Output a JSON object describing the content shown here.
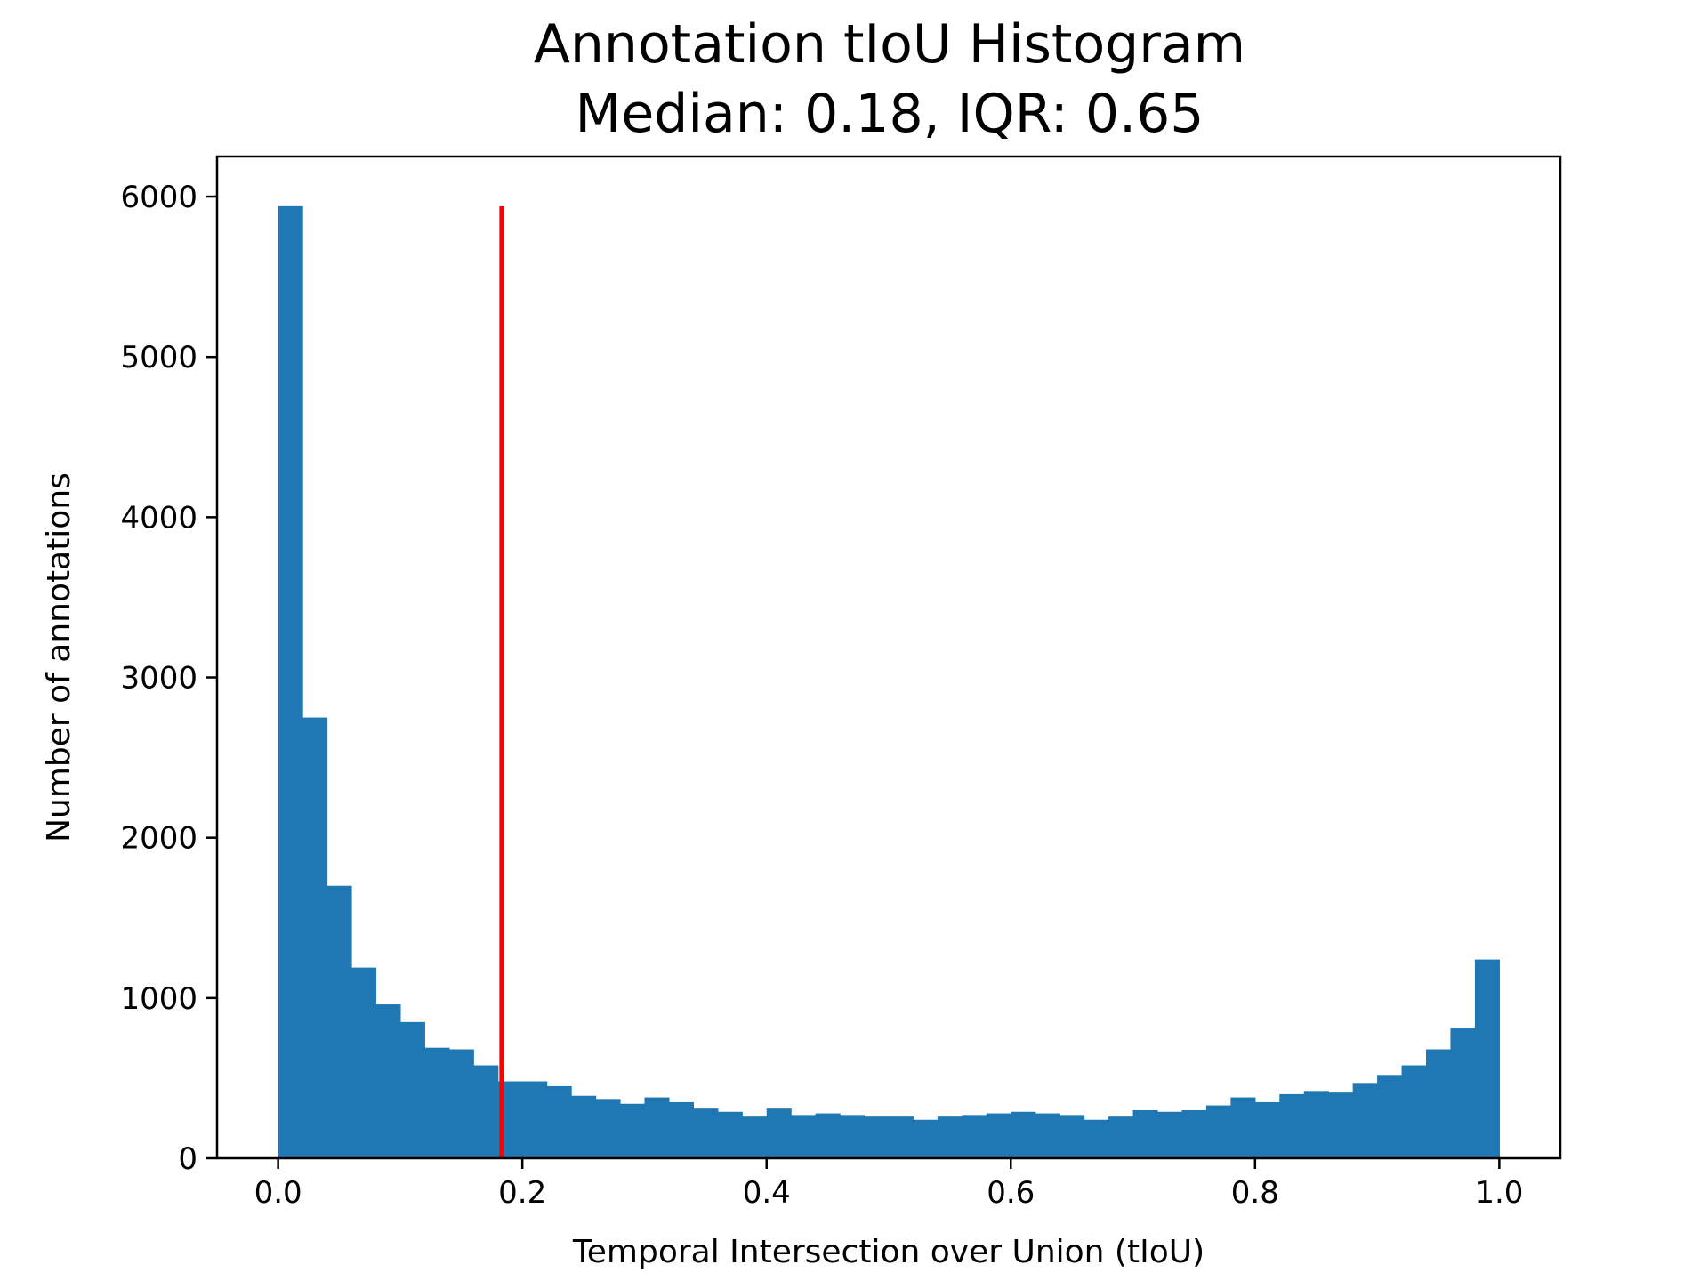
{
  "chart_data": {
    "type": "bar",
    "title_line1": "Annotation tIoU Histogram",
    "title_line2": "Median: 0.18, IQR: 0.65",
    "xlabel": "Temporal Intersection over Union (tIoU)",
    "ylabel": "Number of annotations",
    "xlim": [
      -0.05,
      1.05
    ],
    "ylim": [
      0,
      6250
    ],
    "xticks": [
      "0.0",
      "0.2",
      "0.4",
      "0.6",
      "0.8",
      "1.0"
    ],
    "xtick_values": [
      0.0,
      0.2,
      0.4,
      0.6,
      0.8,
      1.0
    ],
    "yticks": [
      "0",
      "1000",
      "2000",
      "3000",
      "4000",
      "5000",
      "6000"
    ],
    "ytick_values": [
      0,
      1000,
      2000,
      3000,
      4000,
      5000,
      6000
    ],
    "bin_start": 0.0,
    "bin_width": 0.02,
    "values": [
      5940,
      2750,
      1700,
      1190,
      960,
      850,
      690,
      680,
      580,
      480,
      480,
      450,
      390,
      370,
      340,
      380,
      350,
      310,
      290,
      260,
      310,
      270,
      280,
      270,
      260,
      260,
      240,
      260,
      270,
      280,
      290,
      280,
      270,
      240,
      260,
      300,
      290,
      300,
      330,
      380,
      350,
      400,
      420,
      410,
      470,
      520,
      580,
      680,
      810,
      1240
    ],
    "median_line": {
      "x": 0.183,
      "y_top": 5940
    },
    "colors": {
      "bars": "#1f77b4",
      "median_line": "#ff0000"
    },
    "grid": false
  }
}
